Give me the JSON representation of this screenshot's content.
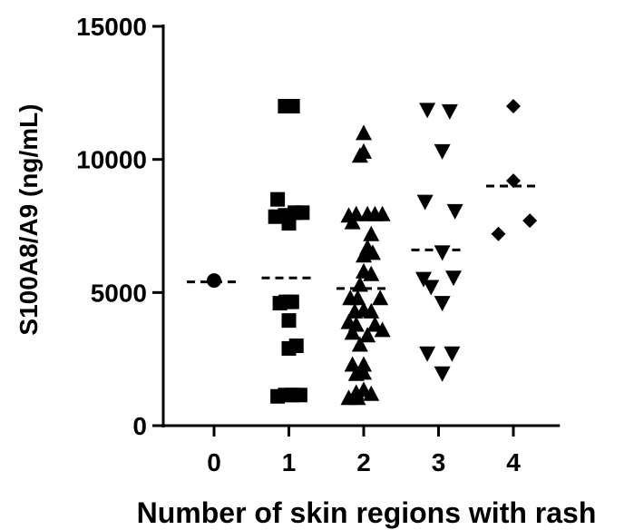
{
  "chart_data": {
    "type": "scatter",
    "title": "",
    "xlabel": "Number of skin regions with rash",
    "ylabel": "S100A8/A9 (ng/mL)",
    "ylim": [
      0,
      15000
    ],
    "y_ticks": [
      0,
      5000,
      10000,
      15000
    ],
    "y_tick_labels": [
      "0",
      "5000",
      "10000",
      "15000"
    ],
    "categories": [
      "0",
      "1",
      "2",
      "3",
      "4"
    ],
    "legend": "none",
    "grid": false,
    "mark_color": "#000000",
    "series": [
      {
        "category": "0",
        "marker": "circle",
        "mean": 5400,
        "points": [
          {
            "x": 0,
            "y": 5450
          }
        ]
      },
      {
        "category": "1",
        "marker": "square",
        "mean": 5550,
        "points": [
          {
            "x": 0.95,
            "y": 12000
          },
          {
            "x": 1.05,
            "y": 12000
          },
          {
            "x": 0.85,
            "y": 8500
          },
          {
            "x": 0.82,
            "y": 7850
          },
          {
            "x": 0.95,
            "y": 7900
          },
          {
            "x": 1.08,
            "y": 8000
          },
          {
            "x": 1.18,
            "y": 8000
          },
          {
            "x": 1.0,
            "y": 7600
          },
          {
            "x": 0.96,
            "y": 4650
          },
          {
            "x": 0.88,
            "y": 4600
          },
          {
            "x": 1.04,
            "y": 4650
          },
          {
            "x": 1.0,
            "y": 3950
          },
          {
            "x": 1.0,
            "y": 2900
          },
          {
            "x": 1.1,
            "y": 3000
          },
          {
            "x": 0.85,
            "y": 1100
          },
          {
            "x": 0.95,
            "y": 1150
          },
          {
            "x": 1.05,
            "y": 1150
          },
          {
            "x": 1.15,
            "y": 1150
          }
        ]
      },
      {
        "category": "2",
        "marker": "triangle-up",
        "mean": 5150,
        "points": [
          {
            "x": 2.0,
            "y": 11000
          },
          {
            "x": 2.0,
            "y": 10300
          },
          {
            "x": 1.95,
            "y": 10150
          },
          {
            "x": 1.8,
            "y": 7900
          },
          {
            "x": 1.9,
            "y": 7950
          },
          {
            "x": 2.05,
            "y": 7950
          },
          {
            "x": 2.15,
            "y": 7950
          },
          {
            "x": 2.25,
            "y": 7950
          },
          {
            "x": 1.85,
            "y": 7650
          },
          {
            "x": 2.1,
            "y": 7200
          },
          {
            "x": 2.05,
            "y": 6700
          },
          {
            "x": 2.12,
            "y": 6500
          },
          {
            "x": 2.0,
            "y": 6400
          },
          {
            "x": 2.0,
            "y": 5800
          },
          {
            "x": 2.1,
            "y": 5700
          },
          {
            "x": 1.95,
            "y": 5300
          },
          {
            "x": 1.82,
            "y": 4800
          },
          {
            "x": 1.92,
            "y": 4800
          },
          {
            "x": 2.22,
            "y": 4800
          },
          {
            "x": 1.88,
            "y": 4300
          },
          {
            "x": 2.0,
            "y": 4350
          },
          {
            "x": 2.1,
            "y": 4300
          },
          {
            "x": 1.8,
            "y": 3900
          },
          {
            "x": 1.9,
            "y": 3800
          },
          {
            "x": 2.15,
            "y": 3800
          },
          {
            "x": 1.85,
            "y": 3500
          },
          {
            "x": 2.05,
            "y": 3400
          },
          {
            "x": 2.25,
            "y": 3600
          },
          {
            "x": 1.95,
            "y": 3050
          },
          {
            "x": 1.85,
            "y": 2300
          },
          {
            "x": 2.0,
            "y": 2300
          },
          {
            "x": 1.9,
            "y": 1950
          },
          {
            "x": 2.0,
            "y": 2000
          },
          {
            "x": 2.0,
            "y": 1350
          },
          {
            "x": 1.9,
            "y": 1250
          },
          {
            "x": 2.1,
            "y": 1200
          },
          {
            "x": 1.8,
            "y": 1050
          },
          {
            "x": 1.92,
            "y": 1050
          }
        ]
      },
      {
        "category": "3",
        "marker": "triangle-down",
        "mean": 6600,
        "points": [
          {
            "x": 2.85,
            "y": 11850
          },
          {
            "x": 3.15,
            "y": 11800
          },
          {
            "x": 3.05,
            "y": 10300
          },
          {
            "x": 2.82,
            "y": 8400
          },
          {
            "x": 3.22,
            "y": 8050
          },
          {
            "x": 3.05,
            "y": 6500
          },
          {
            "x": 2.8,
            "y": 5500
          },
          {
            "x": 3.2,
            "y": 5550
          },
          {
            "x": 2.9,
            "y": 5200
          },
          {
            "x": 3.05,
            "y": 4600
          },
          {
            "x": 2.85,
            "y": 2700
          },
          {
            "x": 3.18,
            "y": 2700
          },
          {
            "x": 3.05,
            "y": 1950
          }
        ]
      },
      {
        "category": "4",
        "marker": "diamond",
        "mean": 9000,
        "points": [
          {
            "x": 4.0,
            "y": 12000
          },
          {
            "x": 4.0,
            "y": 9200
          },
          {
            "x": 3.8,
            "y": 7200
          },
          {
            "x": 4.22,
            "y": 7700
          }
        ]
      }
    ]
  }
}
